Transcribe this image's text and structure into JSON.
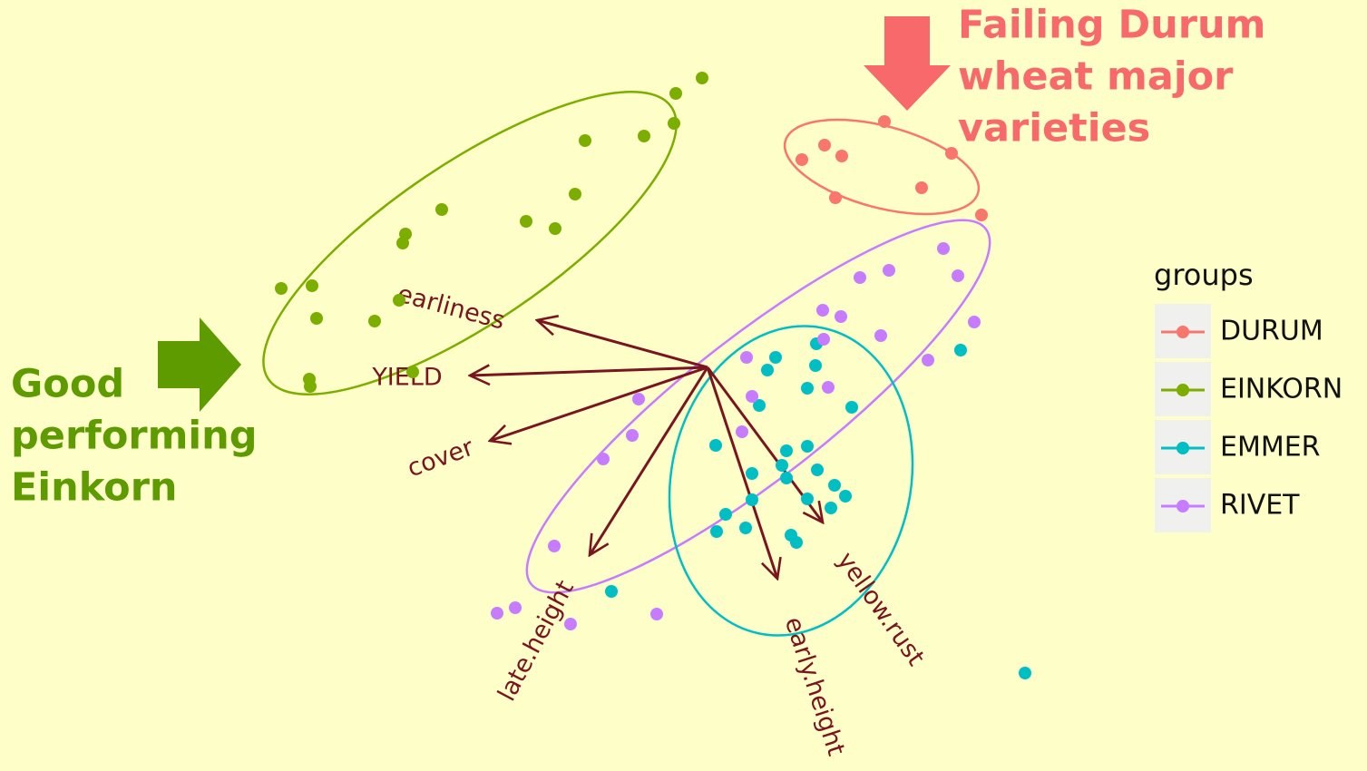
{
  "chart_data": {
    "type": "biplot",
    "legend_title": "groups",
    "legend": "right",
    "annotations": [
      {
        "lines": [
          "Failing Durum",
          "wheat major",
          "varieties"
        ],
        "color": "#f8696b"
      },
      {
        "lines": [
          "Good",
          "performing",
          "Einkorn"
        ],
        "color": "#5e9b00"
      }
    ],
    "series": [
      {
        "name": "DURUM",
        "color": "#f8766d",
        "x": [
          1.95,
          1.29,
          1.48,
          1.04,
          2.69,
          2.36,
          1.41,
          3.02
        ],
        "y": [
          2.71,
          2.45,
          2.33,
          2.29,
          2.36,
          1.98,
          1.87,
          1.68
        ]
      },
      {
        "name": "EINKORN",
        "color": "#7cae00",
        "x": [
          -0.06,
          -0.35,
          -0.37,
          -0.7,
          -1.35,
          -1.46,
          -2.93,
          -3.33,
          -3.36,
          -2.0,
          -1.68,
          -4.7,
          -4.36,
          -4.31,
          -3.67,
          -3.4,
          -4.39,
          -4.38,
          -3.25
        ],
        "y": [
          3.19,
          3.02,
          2.69,
          2.55,
          2.5,
          1.91,
          1.74,
          1.47,
          1.37,
          1.61,
          1.53,
          0.87,
          0.9,
          0.54,
          0.51,
          0.74,
          -0.13,
          -0.21,
          -0.05
        ]
      },
      {
        "name": "EMMER",
        "color": "#00bfc4",
        "x": [
          1.2,
          0.75,
          0.66,
          1.19,
          1.1,
          0.57,
          1.59,
          0.09,
          0.87,
          1.1,
          0.49,
          0.82,
          0.87,
          1.21,
          1.4,
          1.52,
          1.1,
          1.36,
          0.49,
          0.2,
          0.42,
          0.1,
          0.92,
          0.98,
          -1.06,
          2.79,
          3.5
        ],
        "y": [
          0.26,
          0.11,
          -0.03,
          0.02,
          -0.23,
          -0.42,
          -0.44,
          -0.86,
          -0.92,
          -0.87,
          -1.17,
          -1.08,
          -1.22,
          -1.13,
          -1.3,
          -1.42,
          -1.45,
          -1.55,
          -1.46,
          -1.62,
          -1.77,
          -1.81,
          -1.85,
          -1.93,
          -2.47,
          0.19,
          -3.37
        ]
      },
      {
        "name": "RIVET",
        "color": "#c77cff",
        "x": [
          2.6,
          2.76,
          2.0,
          1.68,
          1.27,
          1.47,
          1.28,
          1.91,
          2.43,
          2.94,
          0.43,
          0.49,
          1.33,
          -0.76,
          0.38,
          -0.83,
          -1.15,
          -1.69,
          -2.32,
          -2.12,
          -1.51,
          -0.56
        ],
        "y": [
          1.31,
          1.01,
          1.07,
          0.99,
          0.63,
          0.56,
          0.31,
          0.35,
          0.08,
          0.5,
          0.11,
          -0.32,
          -0.22,
          -0.35,
          -0.71,
          -0.75,
          -1.01,
          -1.97,
          -2.71,
          -2.65,
          -2.83,
          -2.72
        ]
      }
    ],
    "loadings": [
      {
        "name": "earliness",
        "x": -1.88,
        "y": 0.52
      },
      {
        "name": "YIELD",
        "x": -2.62,
        "y": -0.09
      },
      {
        "name": "cover",
        "x": -2.4,
        "y": -0.81
      },
      {
        "name": "late.height",
        "x": -1.3,
        "y": -2.07
      },
      {
        "name": "early.height",
        "x": 0.77,
        "y": -2.33
      },
      {
        "name": "yellow.rust",
        "x": 1.27,
        "y": -1.71
      }
    ],
    "loading_color": "#7a1520"
  }
}
